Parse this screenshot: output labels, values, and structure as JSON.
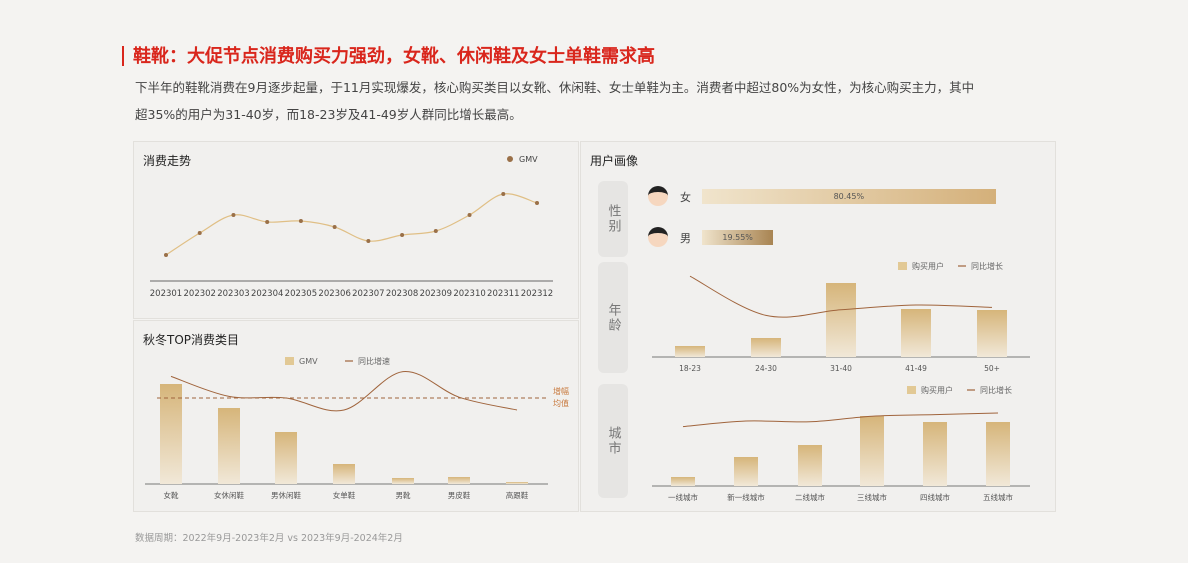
{
  "header": {
    "title": "鞋靴：大促节点消费购买力强劲，女靴、休闲鞋及女士单鞋需求高",
    "para_line1": "下半年的鞋靴消费在9月逐步起量，于11月实现爆发，核心购买类目以女靴、休闲鞋、女士单鞋为主。消费者中超过80%为女性，为核心购买主力，其中",
    "para_line2": "超35%的用户为31-40岁，而18-23岁及41-49岁人群同比增长最高。"
  },
  "footer": "数据周期：2022年9月-2023年2月 vs 2023年9月-2024年2月",
  "colors": {
    "accent": "#d9261c",
    "bar": "#d6b57a",
    "line": "#a0643c",
    "point": "#9a7048"
  },
  "chart_data": [
    {
      "id": "trend",
      "type": "line",
      "title": "消费走势",
      "legend": [
        "GMV"
      ],
      "legend_position": "top-right",
      "categories": [
        "202301",
        "202302",
        "202303",
        "202304",
        "202305",
        "202306",
        "202307",
        "202308",
        "202309",
        "202310",
        "202311",
        "202312"
      ],
      "values": [
        26,
        48,
        66,
        59,
        60,
        54,
        40,
        46,
        50,
        66,
        87,
        78
      ],
      "ylim": [
        0,
        100
      ],
      "unit": "relative"
    },
    {
      "id": "category",
      "type": "bar",
      "title": "秋冬TOP消费类目",
      "legend": [
        "GMV",
        "同比增速"
      ],
      "legend_position": "top",
      "categories": [
        "女靴",
        "女休闲鞋",
        "男休闲鞋",
        "女单鞋",
        "男靴",
        "男皮鞋",
        "高跟鞋"
      ],
      "series": [
        {
          "name": "GMV",
          "type": "bar",
          "values": [
            100,
            76,
            52,
            20,
            6,
            7,
            2
          ]
        },
        {
          "name": "同比增速",
          "type": "line",
          "values": [
            62,
            37,
            35,
            20,
            68,
            36,
            20
          ]
        }
      ],
      "reference_line": {
        "label": "增幅均值",
        "value": 35
      },
      "unit": "relative"
    },
    {
      "id": "gender",
      "type": "bar",
      "title": "用户画像",
      "section": "性别",
      "categories": [
        "女",
        "男"
      ],
      "values": [
        80.45,
        19.55
      ],
      "labels": [
        "80.45%",
        "19.55%"
      ]
    },
    {
      "id": "age",
      "type": "bar",
      "section": "年龄",
      "legend": [
        "购买用户",
        "同比增长"
      ],
      "categories": [
        "18-23",
        "24-30",
        "31-40",
        "41-49",
        "50+"
      ],
      "series": [
        {
          "name": "购买用户",
          "type": "bar",
          "values": [
            11,
            19,
            74,
            48,
            47
          ]
        },
        {
          "name": "同比增长",
          "type": "line",
          "values": [
            81,
            32,
            39,
            45,
            42
          ]
        }
      ],
      "unit": "relative"
    },
    {
      "id": "city",
      "type": "bar",
      "section": "城市",
      "legend": [
        "购买用户",
        "同比增长"
      ],
      "categories": [
        "一线城市",
        "新一线城市",
        "二线城市",
        "三线城市",
        "四线城市",
        "五线城市"
      ],
      "series": [
        {
          "name": "购买用户",
          "type": "bar",
          "values": [
            9,
            29,
            41,
            70,
            64,
            64
          ]
        },
        {
          "name": "同比增长",
          "type": "line",
          "values": [
            48,
            55,
            54,
            61,
            63,
            65
          ]
        }
      ],
      "unit": "relative"
    }
  ]
}
